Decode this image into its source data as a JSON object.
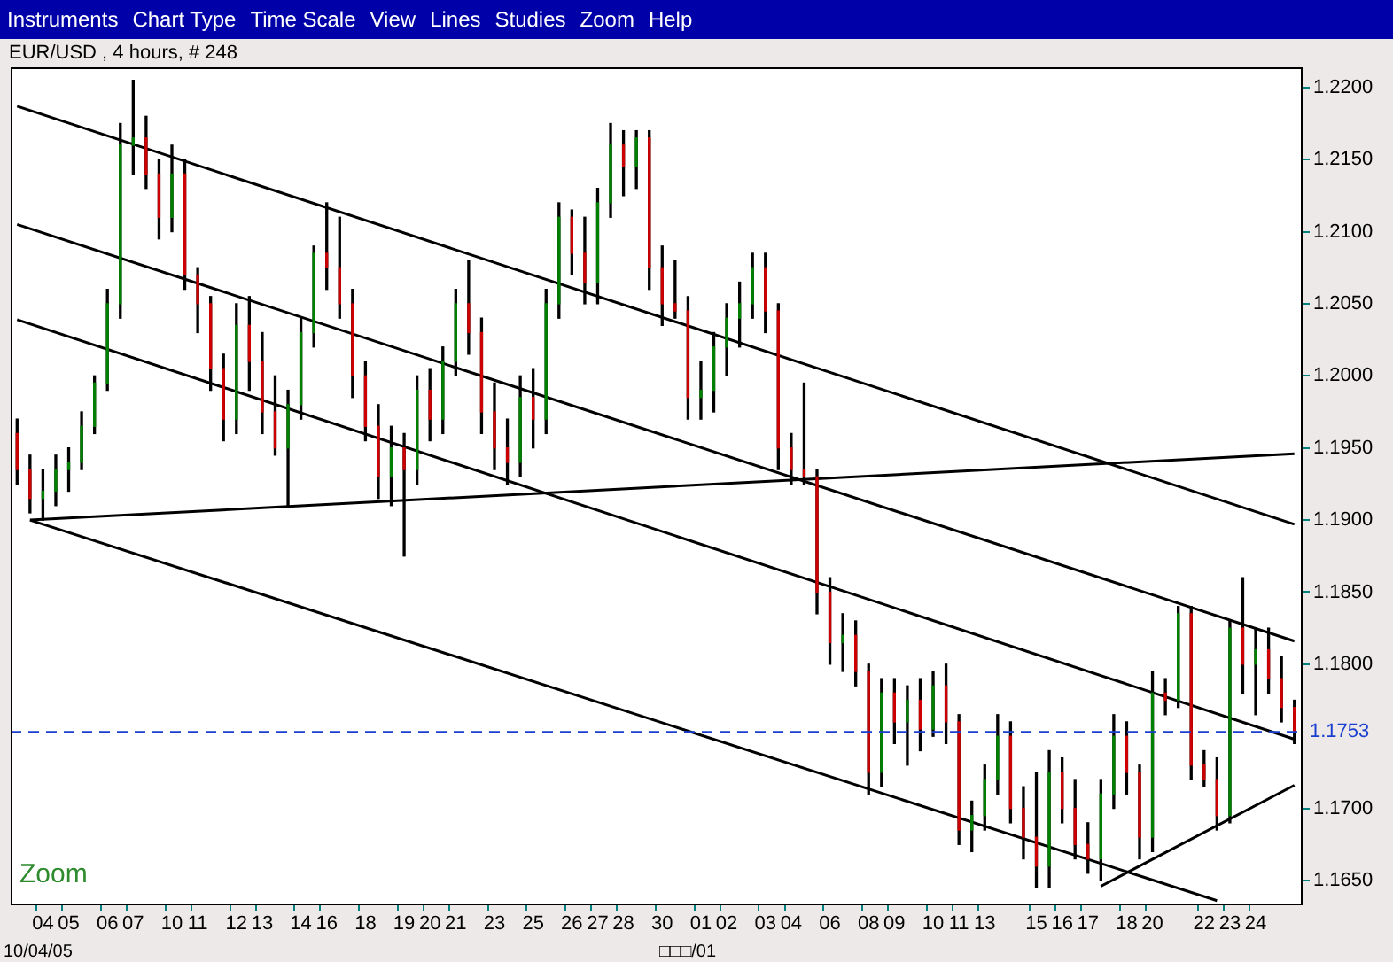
{
  "chart_data": {
    "type": "candlestick",
    "title": "EUR/USD , 4 hours, # 248",
    "categories": [
      null,
      null,
      "04",
      null,
      "05",
      null,
      null,
      "06",
      null,
      "07",
      null,
      null,
      "10",
      null,
      "11",
      null,
      null,
      "12",
      null,
      "13",
      null,
      null,
      "14",
      null,
      "16",
      null,
      null,
      "18",
      null,
      null,
      "19",
      null,
      "20",
      null,
      "21",
      null,
      null,
      "23",
      null,
      null,
      "25",
      null,
      null,
      "26",
      null,
      "27",
      null,
      "28",
      null,
      null,
      "30",
      null,
      null,
      "01",
      null,
      "02",
      null,
      null,
      "03",
      null,
      "04",
      null,
      null,
      "06",
      null,
      null,
      "08",
      null,
      "09",
      null,
      null,
      "10",
      null,
      "11",
      null,
      "13",
      null,
      null,
      null,
      "15",
      null,
      "16",
      null,
      "17",
      null,
      null,
      "18",
      null,
      "20",
      null,
      null,
      null,
      "22",
      null,
      "23",
      null,
      "24",
      null,
      null,
      null
    ],
    "ohlc": [
      [
        1.196,
        1.197,
        1.1925,
        1.1935
      ],
      [
        1.1935,
        1.1945,
        1.1905,
        1.1915
      ],
      [
        1.1915,
        1.1935,
        1.19,
        1.192
      ],
      [
        1.192,
        1.1945,
        1.191,
        1.1935
      ],
      [
        1.1935,
        1.195,
        1.192,
        1.194
      ],
      [
        1.194,
        1.1975,
        1.1935,
        1.1965
      ],
      [
        1.1965,
        1.2,
        1.196,
        1.1995
      ],
      [
        1.1995,
        1.206,
        1.199,
        1.205
      ],
      [
        1.205,
        1.2175,
        1.204,
        1.216
      ],
      [
        1.216,
        1.2205,
        1.214,
        1.2165
      ],
      [
        1.2165,
        1.218,
        1.213,
        1.214
      ],
      [
        1.214,
        1.215,
        1.2095,
        1.211
      ],
      [
        1.211,
        1.216,
        1.21,
        1.214
      ],
      [
        1.214,
        1.215,
        1.206,
        1.207
      ],
      [
        1.207,
        1.2075,
        1.203,
        1.205
      ],
      [
        1.205,
        1.2055,
        1.199,
        1.2005
      ],
      [
        1.2005,
        1.2015,
        1.1955,
        1.197
      ],
      [
        1.197,
        1.205,
        1.196,
        1.2035
      ],
      [
        1.2035,
        1.2055,
        1.199,
        1.201
      ],
      [
        1.201,
        1.203,
        1.196,
        1.1975
      ],
      [
        1.1975,
        1.2,
        1.1945,
        1.195
      ],
      [
        1.195,
        1.199,
        1.191,
        1.198
      ],
      [
        1.198,
        1.204,
        1.197,
        1.203
      ],
      [
        1.203,
        1.209,
        1.202,
        1.2085
      ],
      [
        1.2085,
        1.212,
        1.206,
        1.2075
      ],
      [
        1.2075,
        1.211,
        1.204,
        1.205
      ],
      [
        1.205,
        1.206,
        1.1985,
        1.2
      ],
      [
        1.2,
        1.201,
        1.1955,
        1.1965
      ],
      [
        1.1965,
        1.198,
        1.1915,
        1.193
      ],
      [
        1.193,
        1.1965,
        1.191,
        1.195
      ],
      [
        1.195,
        1.196,
        1.1875,
        1.1935
      ],
      [
        1.1935,
        1.2,
        1.1925,
        1.199
      ],
      [
        1.199,
        1.2005,
        1.1955,
        1.197
      ],
      [
        1.197,
        1.202,
        1.196,
        1.201
      ],
      [
        1.201,
        1.206,
        1.2,
        1.205
      ],
      [
        1.205,
        1.208,
        1.2015,
        1.203
      ],
      [
        1.203,
        1.204,
        1.196,
        1.1975
      ],
      [
        1.1975,
        1.1995,
        1.1935,
        1.195
      ],
      [
        1.195,
        1.197,
        1.1925,
        1.194
      ],
      [
        1.194,
        1.2,
        1.193,
        1.1985
      ],
      [
        1.1985,
        1.2005,
        1.195,
        1.197
      ],
      [
        1.197,
        1.206,
        1.196,
        1.205
      ],
      [
        1.205,
        1.212,
        1.204,
        1.211
      ],
      [
        1.211,
        1.2115,
        1.207,
        1.2085
      ],
      [
        1.2085,
        1.211,
        1.205,
        1.2065
      ],
      [
        1.2065,
        1.213,
        1.205,
        1.212
      ],
      [
        1.212,
        1.2175,
        1.211,
        1.216
      ],
      [
        1.216,
        1.217,
        1.2125,
        1.2145
      ],
      [
        1.2145,
        1.217,
        1.213,
        1.2165
      ],
      [
        1.2165,
        1.217,
        1.206,
        1.2075
      ],
      [
        1.2075,
        1.209,
        1.2035,
        1.205
      ],
      [
        1.205,
        1.208,
        1.204,
        1.2045
      ],
      [
        1.2045,
        1.2055,
        1.197,
        1.1985
      ],
      [
        1.1985,
        1.201,
        1.197,
        1.199
      ],
      [
        1.199,
        1.203,
        1.1975,
        1.202
      ],
      [
        1.202,
        1.205,
        1.2,
        1.204
      ],
      [
        1.204,
        1.2065,
        1.202,
        1.205
      ],
      [
        1.205,
        1.2085,
        1.204,
        1.2075
      ],
      [
        1.2075,
        1.2085,
        1.203,
        1.2045
      ],
      [
        1.2045,
        1.205,
        1.1935,
        1.195
      ],
      [
        1.195,
        1.196,
        1.1925,
        1.1935
      ],
      [
        1.1935,
        1.1995,
        1.1925,
        1.193
      ],
      [
        1.193,
        1.1935,
        1.1835,
        1.185
      ],
      [
        1.185,
        1.186,
        1.18,
        1.1815
      ],
      [
        1.1815,
        1.1835,
        1.1795,
        1.182
      ],
      [
        1.182,
        1.183,
        1.1785,
        1.1795
      ],
      [
        1.1795,
        1.18,
        1.171,
        1.1725
      ],
      [
        1.1725,
        1.179,
        1.1715,
        1.178
      ],
      [
        1.178,
        1.179,
        1.1745,
        1.176
      ],
      [
        1.176,
        1.1785,
        1.173,
        1.1775
      ],
      [
        1.1775,
        1.179,
        1.174,
        1.1755
      ],
      [
        1.1755,
        1.1795,
        1.175,
        1.1785
      ],
      [
        1.1785,
        1.18,
        1.1745,
        1.176
      ],
      [
        1.176,
        1.1765,
        1.1675,
        1.1685
      ],
      [
        1.1685,
        1.1705,
        1.167,
        1.1695
      ],
      [
        1.1695,
        1.173,
        1.1685,
        1.172
      ],
      [
        1.172,
        1.1765,
        1.171,
        1.175
      ],
      [
        1.175,
        1.176,
        1.169,
        1.17
      ],
      [
        1.17,
        1.1715,
        1.1665,
        1.168
      ],
      [
        1.168,
        1.1725,
        1.1645,
        1.166
      ],
      [
        1.166,
        1.174,
        1.1645,
        1.1725
      ],
      [
        1.1725,
        1.1735,
        1.169,
        1.17
      ],
      [
        1.17,
        1.172,
        1.1665,
        1.1675
      ],
      [
        1.1675,
        1.169,
        1.1655,
        1.1665
      ],
      [
        1.1665,
        1.172,
        1.165,
        1.171
      ],
      [
        1.171,
        1.1765,
        1.17,
        1.175
      ],
      [
        1.175,
        1.176,
        1.171,
        1.1725
      ],
      [
        1.1725,
        1.173,
        1.1665,
        1.168
      ],
      [
        1.168,
        1.1795,
        1.167,
        1.178
      ],
      [
        1.178,
        1.179,
        1.1765,
        1.1775
      ],
      [
        1.1775,
        1.184,
        1.177,
        1.1835
      ],
      [
        1.1835,
        1.184,
        1.172,
        1.173
      ],
      [
        1.173,
        1.174,
        1.1715,
        1.172
      ],
      [
        1.172,
        1.1735,
        1.1685,
        1.1695
      ],
      [
        1.1695,
        1.183,
        1.169,
        1.1825
      ],
      [
        1.1825,
        1.186,
        1.178,
        1.18
      ],
      [
        1.18,
        1.1825,
        1.1765,
        1.181
      ],
      [
        1.181,
        1.1825,
        1.178,
        1.179
      ],
      [
        1.179,
        1.1805,
        1.176,
        1.177
      ],
      [
        1.177,
        1.1775,
        1.1745,
        1.1753
      ]
    ],
    "colors": [
      "#cc0000",
      "#cc0000",
      "#008000",
      "#008000",
      "#008000",
      "#008000",
      "#008000",
      "#008000",
      "#008000",
      "#008000",
      "#cc0000",
      "#cc0000",
      "#008000",
      "#cc0000",
      "#cc0000",
      "#cc0000",
      "#cc0000",
      "#008000",
      "#cc0000",
      "#cc0000",
      "#cc0000",
      "#008000",
      "#008000",
      "#008000",
      "#cc0000",
      "#cc0000",
      "#cc0000",
      "#cc0000",
      "#cc0000",
      "#008000",
      "#cc0000",
      "#008000",
      "#cc0000",
      "#008000",
      "#008000",
      "#cc0000",
      "#cc0000",
      "#cc0000",
      "#cc0000",
      "#008000",
      "#cc0000",
      "#008000",
      "#008000",
      "#cc0000",
      "#cc0000",
      "#008000",
      "#008000",
      "#cc0000",
      "#008000",
      "#cc0000",
      "#cc0000",
      "#cc0000",
      "#cc0000",
      "#008000",
      "#008000",
      "#008000",
      "#008000",
      "#008000",
      "#cc0000",
      "#cc0000",
      "#cc0000",
      "#cc0000",
      "#cc0000",
      "#cc0000",
      "#008000",
      "#cc0000",
      "#cc0000",
      "#008000",
      "#cc0000",
      "#008000",
      "#cc0000",
      "#008000",
      "#cc0000",
      "#cc0000",
      "#008000",
      "#008000",
      "#008000",
      "#cc0000",
      "#cc0000",
      "#cc0000",
      "#008000",
      "#cc0000",
      "#cc0000",
      "#cc0000",
      "#008000",
      "#008000",
      "#cc0000",
      "#cc0000",
      "#008000",
      "#cc0000",
      "#008000",
      "#cc0000",
      "#cc0000",
      "#cc0000",
      "#008000",
      "#cc0000",
      "#008000",
      "#cc0000",
      "#cc0000",
      "#cc0000"
    ],
    "series": [
      {
        "type": "line",
        "color": "#000000",
        "values": [
          1.2187,
          null,
          null,
          null,
          null,
          null,
          null,
          null,
          null,
          null,
          null,
          null,
          null,
          null,
          null,
          null,
          null,
          null,
          null,
          null,
          null,
          null,
          null,
          null,
          null,
          null,
          null,
          null,
          null,
          null,
          null,
          null,
          null,
          null,
          null,
          null,
          null,
          null,
          null,
          null,
          null,
          null,
          null,
          null,
          null,
          null,
          null,
          null,
          null,
          null,
          null,
          null,
          null,
          null,
          null,
          null,
          null,
          null,
          null,
          null,
          null,
          null,
          null,
          null,
          null,
          null,
          null,
          null,
          null,
          null,
          null,
          null,
          null,
          null,
          null,
          null,
          null,
          null,
          null,
          null,
          null,
          null,
          null,
          null,
          null,
          null,
          null,
          null,
          null,
          null,
          null,
          null,
          null,
          null,
          null,
          null,
          null,
          null,
          null,
          1.1897
        ]
      },
      {
        "type": "line",
        "color": "#000000",
        "values": [
          1.2105,
          null,
          null,
          null,
          null,
          null,
          null,
          null,
          null,
          null,
          null,
          null,
          null,
          null,
          null,
          null,
          null,
          null,
          null,
          null,
          null,
          null,
          null,
          null,
          null,
          null,
          null,
          null,
          null,
          null,
          null,
          null,
          null,
          null,
          null,
          null,
          null,
          null,
          null,
          null,
          null,
          null,
          null,
          null,
          null,
          null,
          null,
          null,
          null,
          null,
          null,
          null,
          null,
          null,
          null,
          null,
          null,
          null,
          null,
          null,
          null,
          null,
          null,
          null,
          null,
          null,
          null,
          null,
          null,
          null,
          null,
          null,
          null,
          null,
          null,
          null,
          null,
          null,
          null,
          null,
          null,
          null,
          null,
          null,
          null,
          null,
          null,
          null,
          null,
          null,
          null,
          null,
          null,
          null,
          null,
          null,
          null,
          null,
          null,
          1.1816
        ]
      },
      {
        "type": "line",
        "color": "#000000",
        "values": [
          1.2039,
          null,
          null,
          null,
          null,
          null,
          null,
          null,
          null,
          null,
          null,
          null,
          null,
          null,
          null,
          null,
          null,
          null,
          null,
          null,
          null,
          null,
          null,
          null,
          null,
          null,
          null,
          null,
          null,
          null,
          null,
          null,
          null,
          null,
          null,
          null,
          null,
          null,
          null,
          null,
          null,
          null,
          null,
          null,
          null,
          null,
          null,
          null,
          null,
          null,
          null,
          null,
          null,
          null,
          null,
          null,
          null,
          null,
          null,
          null,
          null,
          null,
          null,
          null,
          null,
          null,
          null,
          null,
          null,
          null,
          null,
          null,
          null,
          null,
          null,
          null,
          null,
          null,
          null,
          null,
          null,
          null,
          null,
          null,
          null,
          null,
          null,
          null,
          null,
          null,
          null,
          null,
          null,
          null,
          null,
          null,
          null,
          null,
          null,
          1.1748
        ]
      },
      {
        "type": "line",
        "color": "#000000",
        "values": [
          null,
          1.19,
          null,
          null,
          null,
          null,
          null,
          null,
          null,
          null,
          null,
          null,
          null,
          null,
          null,
          null,
          null,
          null,
          null,
          null,
          null,
          null,
          null,
          null,
          null,
          null,
          null,
          null,
          null,
          null,
          null,
          null,
          null,
          null,
          null,
          null,
          null,
          null,
          null,
          null,
          null,
          null,
          null,
          null,
          null,
          null,
          null,
          null,
          null,
          null,
          null,
          null,
          null,
          null,
          null,
          null,
          null,
          null,
          null,
          null,
          null,
          null,
          null,
          null,
          null,
          null,
          null,
          null,
          null,
          null,
          null,
          null,
          null,
          null,
          null,
          null,
          null,
          null,
          null,
          null,
          null,
          null,
          null,
          null,
          null,
          null,
          null,
          null,
          null,
          null,
          null,
          null,
          null,
          1.1636,
          null,
          null,
          null,
          null,
          null,
          null
        ]
      },
      {
        "type": "line",
        "color": "#000000",
        "values": [
          null,
          1.19,
          null,
          null,
          null,
          null,
          null,
          null,
          null,
          null,
          null,
          null,
          null,
          null,
          null,
          null,
          null,
          null,
          null,
          null,
          null,
          null,
          null,
          null,
          null,
          null,
          null,
          null,
          null,
          null,
          null,
          null,
          null,
          null,
          null,
          null,
          null,
          null,
          null,
          null,
          null,
          null,
          null,
          null,
          null,
          null,
          null,
          null,
          null,
          null,
          null,
          null,
          null,
          null,
          null,
          null,
          null,
          null,
          null,
          null,
          null,
          null,
          null,
          null,
          null,
          null,
          null,
          null,
          null,
          null,
          null,
          null,
          null,
          null,
          null,
          null,
          null,
          null,
          null,
          null,
          null,
          null,
          null,
          null,
          null,
          null,
          null,
          null,
          null,
          null,
          null,
          null,
          null,
          null,
          null,
          null,
          null,
          null,
          null,
          1.1946
        ]
      },
      {
        "type": "line",
        "color": "#000000",
        "values": [
          null,
          null,
          null,
          null,
          null,
          null,
          null,
          null,
          null,
          null,
          null,
          null,
          null,
          null,
          null,
          null,
          null,
          null,
          null,
          null,
          null,
          null,
          null,
          null,
          null,
          null,
          null,
          null,
          null,
          null,
          null,
          null,
          null,
          null,
          null,
          null,
          null,
          null,
          null,
          null,
          null,
          null,
          null,
          null,
          null,
          null,
          null,
          null,
          null,
          null,
          null,
          null,
          null,
          null,
          null,
          null,
          null,
          null,
          null,
          null,
          null,
          null,
          null,
          null,
          null,
          null,
          null,
          null,
          null,
          null,
          null,
          null,
          null,
          null,
          null,
          null,
          null,
          null,
          null,
          null,
          null,
          null,
          null,
          null,
          1.1646,
          null,
          null,
          null,
          null,
          null,
          null,
          null,
          null,
          null,
          null,
          null,
          null,
          null,
          null,
          1.1716
        ]
      }
    ],
    "ylim": [
      1.1634,
      1.2214
    ],
    "yticks": [
      {
        "value": 1.165,
        "label": "1.1650"
      },
      {
        "value": 1.17,
        "label": "1.1700"
      },
      {
        "value": 1.18,
        "label": "1.1800"
      },
      {
        "value": 1.185,
        "label": "1.1850"
      },
      {
        "value": 1.19,
        "label": "1.1900"
      },
      {
        "value": 1.195,
        "label": "1.1950"
      },
      {
        "value": 1.2,
        "label": "1.2000"
      },
      {
        "value": 1.205,
        "label": "1.2050"
      },
      {
        "value": 1.21,
        "label": "1.2100"
      },
      {
        "value": 1.215,
        "label": "1.2150"
      },
      {
        "value": 1.22,
        "label": "1.2200"
      }
    ],
    "ref_lines": [
      {
        "axis": "y",
        "value": 1.1753,
        "label": "1.1753",
        "color": "#1a3fd0",
        "line_style": "dashed"
      }
    ],
    "annotations": [
      "Zoom",
      "10/04/05",
      "□□□/01",
      "Instruments",
      "Chart Type",
      "Time Scale",
      "View",
      "Lines",
      "Studies",
      "Zoom",
      "Help"
    ],
    "grid": false,
    "legend": false
  }
}
